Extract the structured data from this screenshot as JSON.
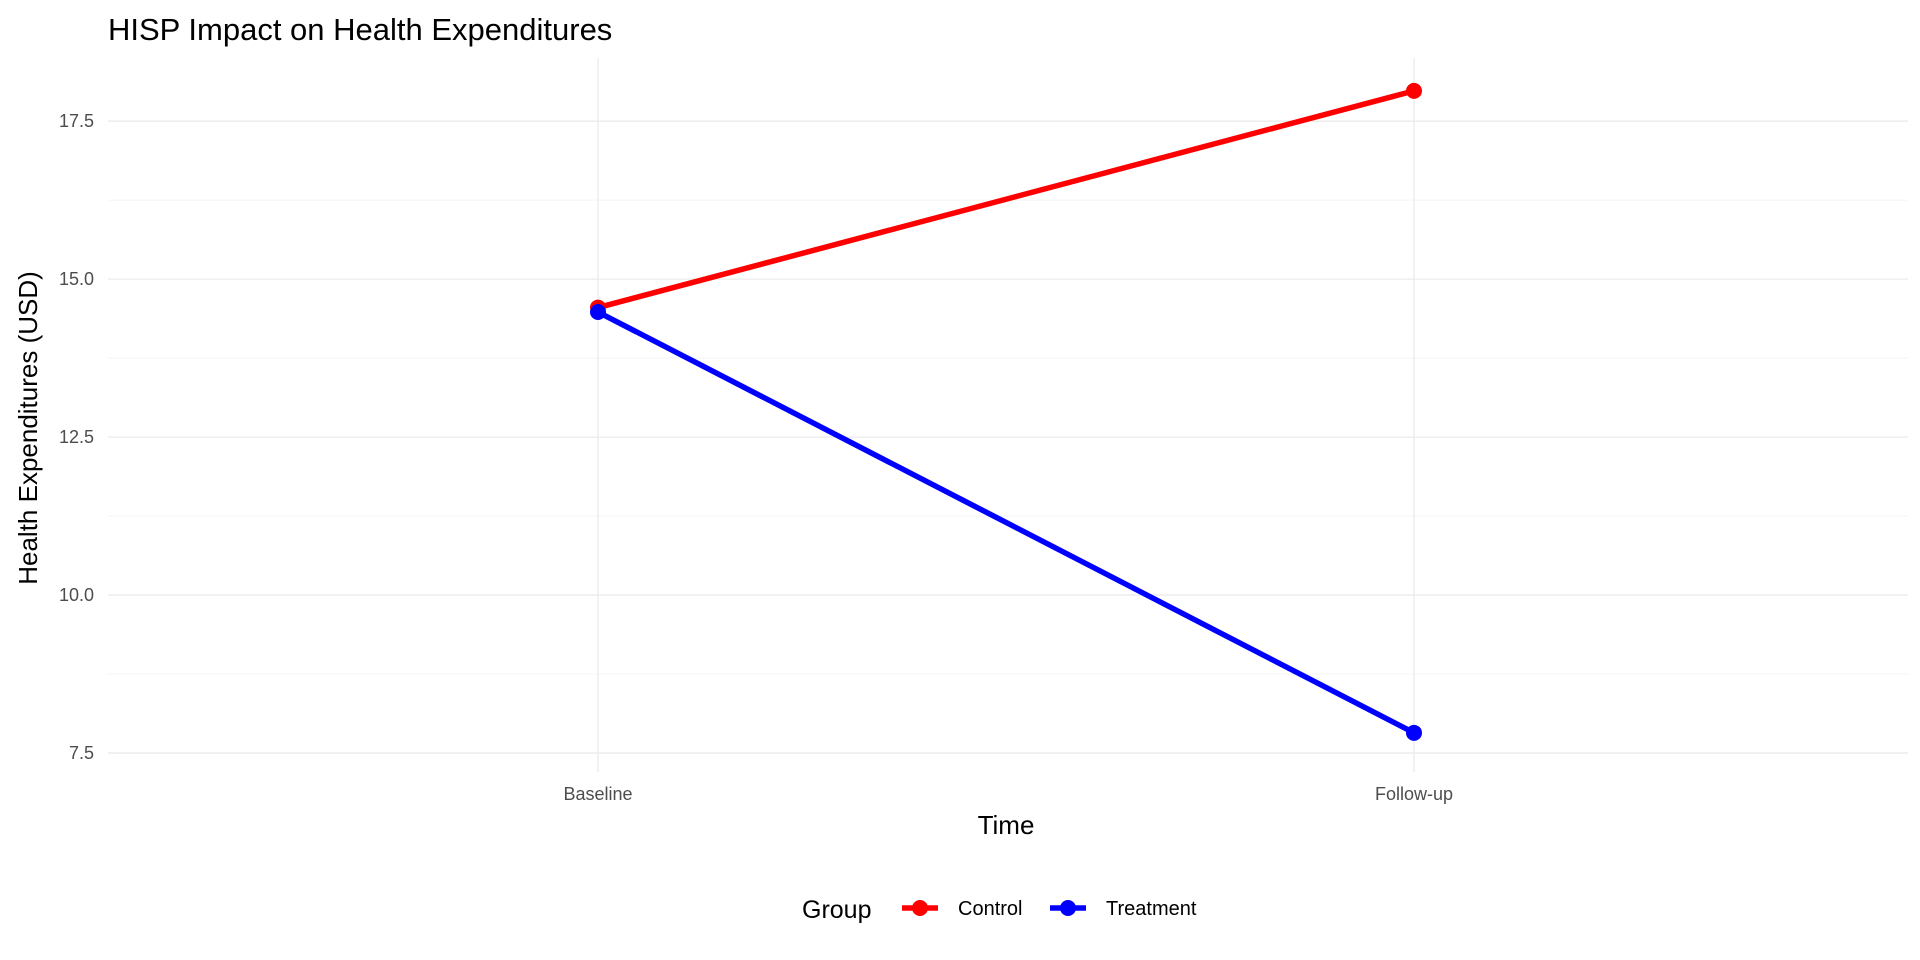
{
  "chart_data": {
    "type": "line",
    "title": "HISP Impact on Health Expenditures",
    "xlabel": "Time",
    "ylabel": "Health Expenditures (USD)",
    "categories": [
      "Baseline",
      "Follow-up"
    ],
    "ylim": [
      7.2,
      18.5
    ],
    "y_ticks": [
      7.5,
      10.0,
      12.5,
      15.0,
      17.5
    ],
    "y_tick_labels": [
      "7.5",
      "10.0",
      "12.5",
      "15.0",
      "17.5"
    ],
    "y_minor_ticks": [
      8.75,
      11.25,
      13.75,
      16.25
    ],
    "grid": true,
    "legend": {
      "title": "Group",
      "position": "bottom"
    },
    "series": [
      {
        "name": "Control",
        "color": "#ff0000",
        "values": [
          14.55,
          17.98
        ]
      },
      {
        "name": "Treatment",
        "color": "#0000ff",
        "values": [
          14.48,
          7.82
        ]
      }
    ]
  }
}
